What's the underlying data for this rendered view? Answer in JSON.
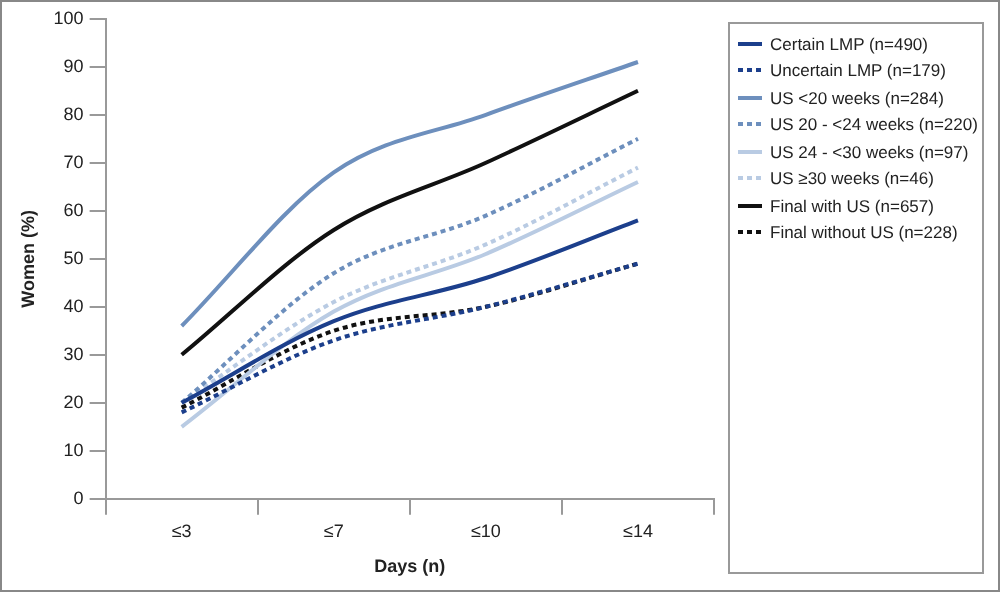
{
  "chart_data": {
    "type": "line",
    "xlabel": "Days (n)",
    "ylabel": "Women (%)",
    "categories": [
      "≤3",
      "≤7",
      "≤10",
      "≤14"
    ],
    "ylim": [
      0,
      100
    ],
    "yticks": [
      0,
      10,
      20,
      30,
      40,
      50,
      60,
      70,
      80,
      90,
      100
    ],
    "grid": false,
    "legend": "right",
    "marker": "none",
    "series": [
      {
        "name": "Certain LMP (n=490)",
        "color": "#1c3f8c",
        "line_style": "solid",
        "values": [
          20,
          37,
          46,
          58
        ]
      },
      {
        "name": "Uncertain LMP (n=179)",
        "color": "#1c3f8c",
        "line_style": "dotted",
        "values": [
          18,
          33,
          40,
          49
        ]
      },
      {
        "name": "US <20 weeks (n=284)",
        "color": "#6d8fbd",
        "line_style": "solid",
        "values": [
          36,
          68,
          80,
          91
        ]
      },
      {
        "name": "US 20 - <24 weeks (n=220)",
        "color": "#6d8fbd",
        "line_style": "dotted",
        "values": [
          20,
          47,
          59,
          75
        ]
      },
      {
        "name": "US 24 - <30 weeks (n=97)",
        "color": "#b9cbe3",
        "line_style": "solid",
        "values": [
          15,
          39,
          51,
          66
        ]
      },
      {
        "name": "US ≥30 weeks (n=46)",
        "color": "#b9cbe3",
        "line_style": "dotted",
        "values": [
          20,
          41,
          53,
          69
        ]
      },
      {
        "name": "Final with US (n=657)",
        "color": "#111111",
        "line_style": "solid",
        "values": [
          30,
          56,
          70,
          85
        ]
      },
      {
        "name": "Final without US (n=228)",
        "color": "#111111",
        "line_style": "dotted",
        "values": [
          19,
          35,
          40,
          49
        ]
      }
    ]
  }
}
